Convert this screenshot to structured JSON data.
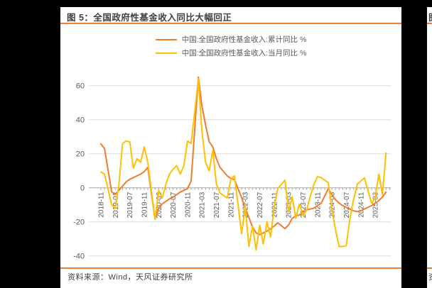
{
  "page": {
    "background_color": "#000000"
  },
  "figure": {
    "title": "图 5：全国政府性基金收入同比大幅回正",
    "accent_color": "#ED7D31",
    "source": "资料来源：Wind，天风证券研究所"
  },
  "adjacent_figure": {
    "title_fragment": "图",
    "source_fragment": "资"
  },
  "chart_data": {
    "type": "line",
    "title": "图 5：全国政府性基金收入同比大幅回正",
    "xlabel": "",
    "ylabel": "",
    "ylim": [
      -40,
      66
    ],
    "yticks": [
      60,
      40,
      20,
      0,
      -20,
      -40
    ],
    "grid": "horizontal",
    "legend_position": "top",
    "x": [
      "2018-11",
      "2018-12",
      "2019-02",
      "2019-03",
      "2019-04",
      "2019-05",
      "2019-06",
      "2019-07",
      "2019-08",
      "2019-09",
      "2019-10",
      "2019-11",
      "2019-12",
      "2020-02",
      "2020-03",
      "2020-04",
      "2020-05",
      "2020-06",
      "2020-07",
      "2020-08",
      "2020-09",
      "2020-10",
      "2020-11",
      "2020-12",
      "2021-02",
      "2021-03",
      "2021-04",
      "2021-05",
      "2021-06",
      "2021-07",
      "2021-08",
      "2021-09",
      "2021-10",
      "2021-11",
      "2021-12",
      "2022-02",
      "2022-03",
      "2022-04",
      "2022-05",
      "2022-06",
      "2022-07",
      "2022-08",
      "2022-09",
      "2022-10",
      "2022-11",
      "2022-12",
      "2023-02",
      "2023-03",
      "2023-04",
      "2023-05",
      "2023-06",
      "2023-07",
      "2023-08",
      "2023-09",
      "2023-10",
      "2023-11",
      "2023-12",
      "2024-02",
      "2024-03",
      "2024-04",
      "2024-05",
      "2024-06",
      "2024-07",
      "2024-08",
      "2024-09",
      "2024-10",
      "2024-11",
      "2024-12",
      "2025-02",
      "2025-03",
      "2025-04",
      "2025-05",
      "2025-06"
    ],
    "xtick_labels": [
      "2018-11",
      "2019-03",
      "2019-07",
      "2019-11",
      "2020-03",
      "2020-07",
      "2020-11",
      "2021-03",
      "2021-07",
      "2021-11",
      "2022-03",
      "2022-07",
      "2022-11",
      "2023-03",
      "2023-07",
      "2023-11",
      "2024-03",
      "2024-07",
      "2024-11",
      "2025-03"
    ],
    "series": [
      {
        "name": "中国:全国政府性基金收入:累计同比 %",
        "color": "#ED7D31",
        "values": [
          25.8,
          23.0,
          -2.5,
          -4.0,
          -1.5,
          1.0,
          3.5,
          5.0,
          6.0,
          7.0,
          8.0,
          9.5,
          12.0,
          -18.5,
          -12.0,
          -9.5,
          -8.0,
          -6.5,
          -5.5,
          -4.0,
          -2.5,
          -1.5,
          -0.5,
          4.0,
          65.0,
          48.0,
          37.0,
          27.0,
          24.0,
          17.0,
          12.0,
          9.5,
          7.0,
          5.5,
          4.8,
          -5.9,
          -12.0,
          -17.5,
          -23.0,
          -26.5,
          -27.5,
          -26.5,
          -25.5,
          -24.0,
          -22.5,
          -20.6,
          -24.0,
          -21.8,
          -18.0,
          -16.5,
          -16.0,
          -14.3,
          -13.0,
          -12.5,
          -12.0,
          -10.5,
          -9.2,
          -0.5,
          -4.0,
          -7.0,
          -9.0,
          -10.5,
          -11.5,
          -12.5,
          -13.5,
          -14.0,
          -13.5,
          -12.5,
          -10.5,
          -9.0,
          -7.5,
          -5.5,
          -2.5
        ]
      },
      {
        "name": "中国:全国政府性基金收入:当月同比 %",
        "color": "#FFC000",
        "values": [
          9.3,
          8.0,
          -10.0,
          -12.2,
          2.0,
          26.0,
          27.5,
          27.0,
          11.5,
          17.0,
          15.0,
          24.0,
          15.0,
          -18.5,
          -1.5,
          -6.0,
          2.0,
          8.0,
          11.0,
          13.0,
          8.0,
          13.0,
          27.5,
          26.0,
          64.0,
          33.0,
          15.0,
          10.0,
          22.0,
          2.0,
          -3.0,
          -4.5,
          -6.0,
          5.0,
          7.0,
          -27.0,
          -10.8,
          -34.5,
          -22.5,
          -36.5,
          -22.0,
          -33.0,
          -20.0,
          -29.0,
          -11.5,
          -0.5,
          4.5,
          -14.0,
          -5.3,
          -17.8,
          -9.5,
          -16.4,
          -13.0,
          -5.3,
          2.0,
          6.5,
          6.0,
          3.0,
          -13.0,
          -24.5,
          -34.5,
          -34.5,
          -34.0,
          -18.0,
          -7.0,
          2.0,
          4.0,
          5.8,
          -9.0,
          -6.0,
          8.0,
          -4.0,
          20.4
        ]
      }
    ]
  }
}
